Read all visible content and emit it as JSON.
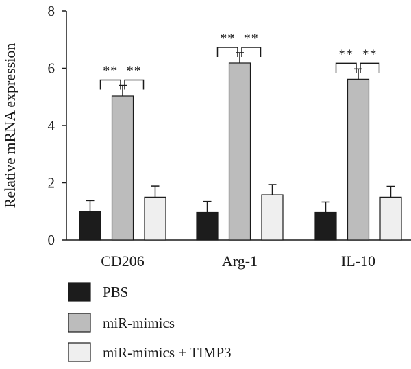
{
  "chart_data": {
    "type": "bar",
    "ylabel": "Relative mRNA expression",
    "xlabel": "",
    "ylim": [
      0,
      8
    ],
    "yticks": [
      0,
      2,
      4,
      6,
      8
    ],
    "categories": [
      "CD206",
      "Arg-1",
      "IL-10"
    ],
    "series": [
      {
        "name": "PBS",
        "color": "#1c1c1c",
        "values": [
          1.0,
          0.97,
          0.97
        ],
        "errors": [
          0.38,
          0.38,
          0.36
        ]
      },
      {
        "name": "miR-mimics",
        "color": "#bcbcbc",
        "values": [
          5.03,
          6.18,
          5.62
        ],
        "errors": [
          0.37,
          0.36,
          0.36
        ]
      },
      {
        "name": "miR-mimics + TIMP3",
        "color": "#efefef",
        "values": [
          1.5,
          1.58,
          1.5
        ],
        "errors": [
          0.39,
          0.36,
          0.38
        ]
      }
    ],
    "significance": [
      {
        "category": "CD206",
        "left_label": "**",
        "right_label": "**"
      },
      {
        "category": "Arg-1",
        "left_label": "**",
        "right_label": "**"
      },
      {
        "category": "IL-10",
        "left_label": "**",
        "right_label": "**"
      }
    ],
    "legend_position": "bottom",
    "grid": false
  }
}
